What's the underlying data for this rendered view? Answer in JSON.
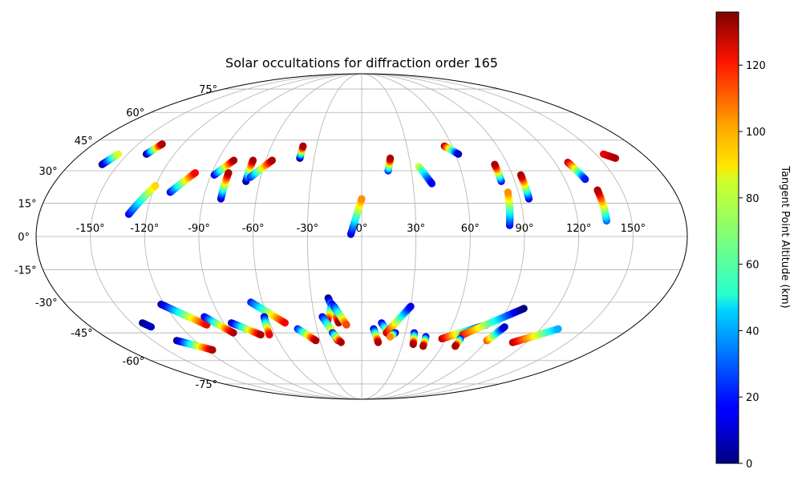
{
  "chart_data": {
    "type": "scatter",
    "projection": "mollweide",
    "title": "Solar occultations for diffraction order 165",
    "colorbar": {
      "label": "Tangent Point Altitude (km)",
      "range": [
        0,
        136
      ],
      "ticks": [
        0,
        20,
        40,
        60,
        80,
        100,
        120
      ],
      "colormap": "jet"
    },
    "lon_ticks": [
      -150,
      -120,
      -90,
      -60,
      -30,
      0,
      30,
      60,
      90,
      120,
      150
    ],
    "lon_tick_labels": [
      "-150°",
      "-120°",
      "-90°",
      "-60°",
      "-30°",
      "0°",
      "30°",
      "60°",
      "90°",
      "120°",
      "150°"
    ],
    "lat_ticks": [
      75,
      60,
      45,
      30,
      15,
      0,
      -15,
      -30,
      -45,
      -60,
      -75
    ],
    "lat_tick_labels": [
      "75°",
      "60°",
      "45°",
      "30°",
      "15°",
      "0°",
      "-15°",
      "-30°",
      "-45°",
      "-60°",
      "-75°"
    ],
    "grid": true,
    "tracks": [
      {
        "from": [
          -160,
          33
        ],
        "to": [
          -156,
          38
        ],
        "alt": [
          0,
          80
        ]
      },
      {
        "from": [
          -138,
          38
        ],
        "to": [
          -134,
          43
        ],
        "alt": [
          0,
          130
        ]
      },
      {
        "from": [
          -130,
          10
        ],
        "to": [
          -120,
          23
        ],
        "alt": [
          15,
          90
        ]
      },
      {
        "from": [
          -110,
          20
        ],
        "to": [
          -100,
          29
        ],
        "alt": [
          15,
          120
        ]
      },
      {
        "from": [
          -88,
          28
        ],
        "to": [
          -80,
          35
        ],
        "alt": [
          10,
          130
        ]
      },
      {
        "from": [
          -80,
          17
        ],
        "to": [
          -80,
          29
        ],
        "alt": [
          5,
          130
        ]
      },
      {
        "from": [
          -68,
          25
        ],
        "to": [
          -68,
          35
        ],
        "alt": [
          0,
          130
        ]
      },
      {
        "from": [
          -66,
          27
        ],
        "to": [
          -56,
          35
        ],
        "alt": [
          20,
          130
        ]
      },
      {
        "from": [
          -39,
          36
        ],
        "to": [
          -39,
          42
        ],
        "alt": [
          0,
          130
        ]
      },
      {
        "from": [
          -6,
          1
        ],
        "to": [
          0,
          17
        ],
        "alt": [
          10,
          100
        ]
      },
      {
        "from": [
          16,
          30
        ],
        "to": [
          18,
          36
        ],
        "alt": [
          20,
          130
        ]
      },
      {
        "from": [
          35,
          32
        ],
        "to": [
          41,
          24
        ],
        "alt": [
          80,
          15
        ]
      },
      {
        "from": [
          55,
          42
        ],
        "to": [
          62,
          38
        ],
        "alt": [
          130,
          10
        ]
      },
      {
        "from": [
          82,
          25
        ],
        "to": [
          82,
          33
        ],
        "alt": [
          15,
          130
        ]
      },
      {
        "from": [
          82,
          5
        ],
        "to": [
          84,
          20
        ],
        "alt": [
          15,
          100
        ]
      },
      {
        "from": [
          95,
          17
        ],
        "to": [
          95,
          28
        ],
        "alt": [
          10,
          130
        ]
      },
      {
        "from": [
          128,
          34
        ],
        "to": [
          132,
          26
        ],
        "alt": [
          130,
          20
        ]
      },
      {
        "from": [
          136,
          7
        ],
        "to": [
          136,
          21
        ],
        "alt": [
          30,
          130
        ]
      },
      {
        "from": [
          155,
          38
        ],
        "to": [
          160,
          36
        ],
        "alt": [
          120,
          130
        ]
      },
      {
        "from": [
          -143,
          -40
        ],
        "to": [
          -140,
          -42
        ],
        "alt": [
          0,
          10
        ]
      },
      {
        "from": [
          -122,
          -31
        ],
        "to": [
          -102,
          -41
        ],
        "alt": [
          5,
          120
        ]
      },
      {
        "from": [
          -133,
          -49
        ],
        "to": [
          -115,
          -54
        ],
        "alt": [
          0,
          130
        ]
      },
      {
        "from": [
          -100,
          -37
        ],
        "to": [
          -88,
          -45
        ],
        "alt": [
          10,
          130
        ]
      },
      {
        "from": [
          -85,
          -40
        ],
        "to": [
          -70,
          -46
        ],
        "alt": [
          5,
          130
        ]
      },
      {
        "from": [
          -67,
          -30
        ],
        "to": [
          -50,
          -40
        ],
        "alt": [
          20,
          120
        ]
      },
      {
        "from": [
          -62,
          -37
        ],
        "to": [
          -64,
          -46
        ],
        "alt": [
          10,
          120
        ]
      },
      {
        "from": [
          -43,
          -43
        ],
        "to": [
          -33,
          -49
        ],
        "alt": [
          20,
          130
        ]
      },
      {
        "from": [
          -20,
          -28
        ],
        "to": [
          -15,
          -40
        ],
        "alt": [
          0,
          130
        ]
      },
      {
        "from": [
          -18,
          -31
        ],
        "to": [
          -22,
          -39
        ],
        "alt": [
          10,
          120
        ]
      },
      {
        "from": [
          -17,
          -32
        ],
        "to": [
          -10,
          -41
        ],
        "alt": [
          20,
          110
        ]
      },
      {
        "from": [
          -25,
          -37
        ],
        "to": [
          -17,
          -49
        ],
        "alt": [
          15,
          130
        ]
      },
      {
        "from": [
          -20,
          -45
        ],
        "to": [
          -15,
          -50
        ],
        "alt": [
          20,
          130
        ]
      },
      {
        "from": [
          8,
          -43
        ],
        "to": [
          12,
          -50
        ],
        "alt": [
          10,
          130
        ]
      },
      {
        "from": [
          13,
          -40
        ],
        "to": [
          20,
          -47
        ],
        "alt": [
          10,
          120
        ]
      },
      {
        "from": [
          17,
          -45
        ],
        "to": [
          30,
          -32
        ],
        "alt": [
          130,
          15
        ]
      },
      {
        "from": [
          23,
          -45
        ],
        "to": [
          20,
          -47
        ],
        "alt": [
          0,
          100
        ]
      },
      {
        "from": [
          36,
          -45
        ],
        "to": [
          38,
          -51
        ],
        "alt": [
          10,
          130
        ]
      },
      {
        "from": [
          45,
          -47
        ],
        "to": [
          46,
          -52
        ],
        "alt": [
          10,
          130
        ]
      },
      {
        "from": [
          57,
          -48
        ],
        "to": [
          82,
          -41
        ],
        "alt": [
          130,
          0
        ]
      },
      {
        "from": [
          70,
          -46
        ],
        "to": [
          100,
          -33
        ],
        "alt": [
          120,
          0
        ]
      },
      {
        "from": [
          70,
          -48
        ],
        "to": [
          70,
          -52
        ],
        "alt": [
          20,
          130
        ]
      },
      {
        "from": [
          90,
          -49
        ],
        "to": [
          95,
          -42
        ],
        "alt": [
          110,
          10
        ]
      },
      {
        "from": [
          110,
          -50
        ],
        "to": [
          132,
          -43
        ],
        "alt": [
          130,
          40
        ]
      }
    ]
  }
}
